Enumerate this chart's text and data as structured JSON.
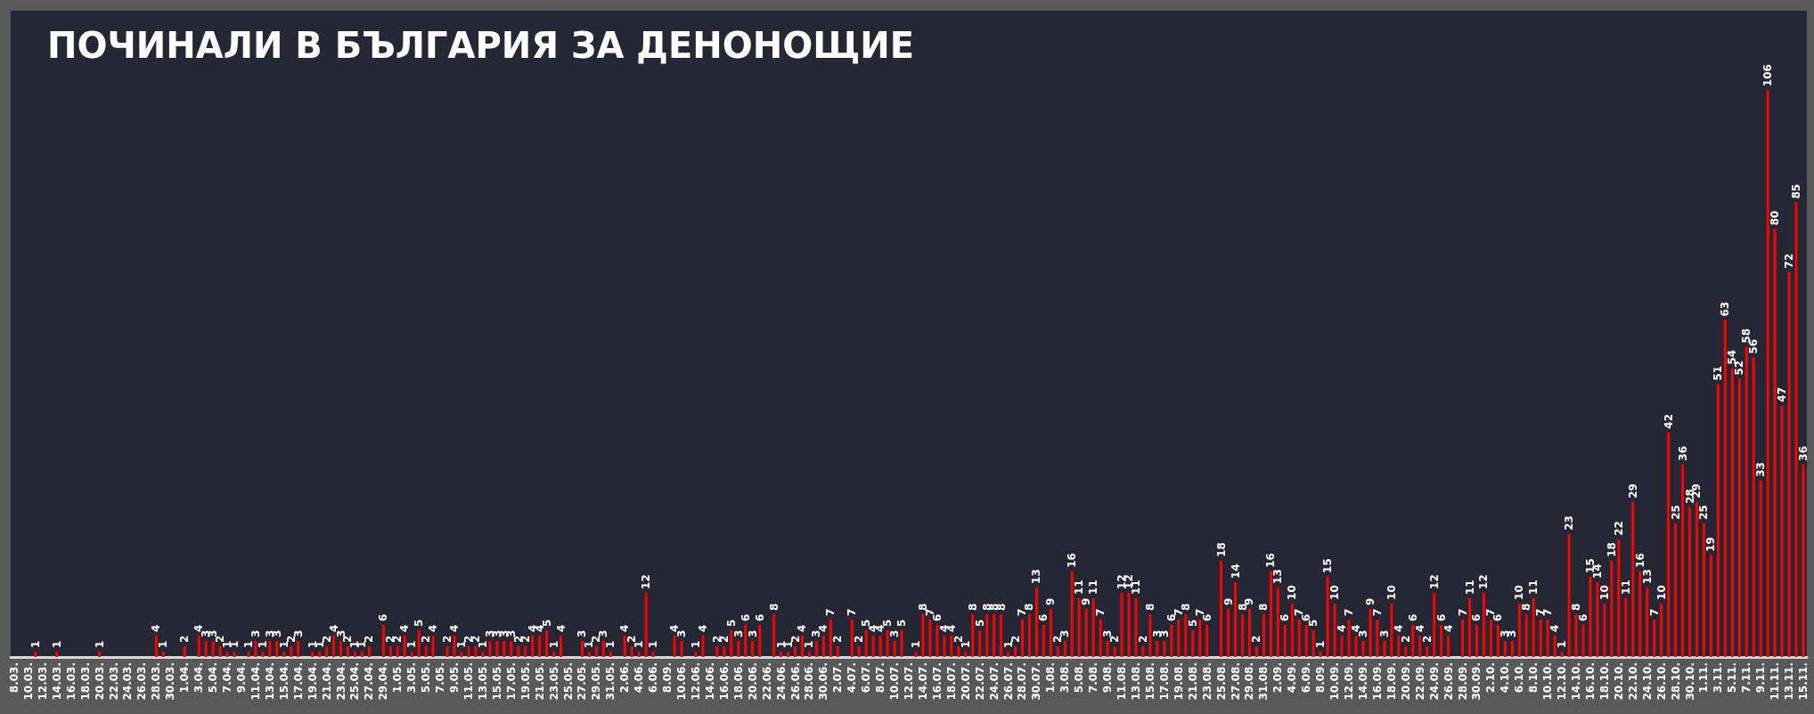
{
  "chart_data": {
    "type": "bar",
    "title": "ПОЧИНАЛИ В БЪЛГАРИЯ ЗА ДЕНОНОЩИЕ",
    "color": "#ff0000",
    "data_labels": true,
    "categories": [
      "8.03.",
      null,
      "10.03.",
      null,
      "12.03.",
      null,
      "14.03.",
      null,
      "16.03.",
      null,
      "18.03.",
      null,
      "20.03.",
      null,
      "22.03.",
      null,
      "24.03.",
      null,
      "26.03.",
      null,
      "28.03.",
      null,
      "30.03.",
      null,
      "1.04.",
      null,
      "3.04.",
      null,
      "5.04.",
      null,
      "7.04.",
      null,
      "9.04.",
      null,
      "11.04.",
      null,
      "13.04.",
      null,
      "15.04.",
      null,
      "17.04.",
      null,
      "19.04.",
      null,
      "21.04.",
      null,
      "23.04.",
      null,
      "25.04.",
      null,
      "27.04.",
      null,
      "29.04.",
      null,
      "1.05.",
      null,
      "3.05.",
      null,
      "5.05.",
      null,
      "7.05.",
      null,
      "9.05.",
      null,
      "11.05.",
      null,
      "13.05.",
      null,
      "15.05.",
      null,
      "17.05.",
      null,
      "19.05.",
      null,
      "21.05.",
      null,
      "23.05.",
      null,
      "25.05.",
      null,
      "27.05.",
      null,
      "29.05.",
      null,
      "31.05.",
      null,
      "2.06.",
      null,
      "4.06.",
      null,
      "6.06.",
      null,
      "8.09.",
      null,
      "10.06.",
      null,
      "12.06.",
      null,
      "14.06.",
      null,
      "16.06.",
      null,
      "18.06.",
      null,
      "20.06.",
      null,
      "22.06.",
      null,
      "24.06.",
      null,
      "26.06.",
      null,
      "28.06.",
      null,
      "30.06.",
      null,
      "2.07.",
      null,
      "4.07.",
      null,
      "6.07.",
      null,
      "8.07.",
      null,
      "10.07.",
      null,
      "12.07.",
      null,
      "14.07.",
      null,
      "16.07.",
      null,
      "18.07.",
      null,
      "20.07.",
      null,
      "22.07.",
      null,
      "24.07.",
      null,
      "26.07.",
      null,
      "28.07.",
      null,
      "30.07.",
      null,
      "1.08.",
      null,
      "3.08.",
      null,
      "5.08.",
      null,
      "7.08.",
      null,
      "9.08.",
      null,
      "11.08.",
      null,
      "13.08.",
      null,
      "15.08.",
      null,
      "17.08.",
      null,
      "19.08.",
      null,
      "21.08.",
      null,
      "23.08.",
      null,
      "25.08.",
      null,
      "27.08.",
      null,
      "29.08.",
      null,
      "31.08.",
      null,
      "2.09.",
      null,
      "4.09.",
      null,
      "6.09.",
      null,
      "8.09.",
      null,
      "10.09.",
      null,
      "12.09.",
      null,
      "14.09.",
      null,
      "16.09.",
      null,
      "18.09.",
      null,
      "20.09.",
      null,
      "22.09.",
      null,
      "24.09.",
      null,
      "26.09.",
      null,
      "28.09.",
      null,
      "30.09.",
      null,
      "2.10.",
      null,
      "4.10.",
      null,
      "6.10.",
      null,
      "8.10.",
      null,
      "10.10.",
      null,
      "12.10.",
      null,
      "14.10.",
      null,
      "16.10.",
      null,
      "18.10.",
      null,
      "20.10.",
      null,
      "22.10.",
      null,
      "24.10.",
      null,
      "26.10.",
      null,
      "28.10.",
      null,
      "30.10.",
      null,
      "1.11.",
      null,
      "3.11.",
      null,
      "5.11.",
      null,
      "7.11.",
      null,
      "9.11.",
      null,
      "11.11.",
      null,
      "13.11.",
      null,
      "15.11."
    ],
    "values": [
      null,
      null,
      null,
      1,
      null,
      null,
      1,
      null,
      null,
      null,
      null,
      null,
      1,
      null,
      null,
      null,
      null,
      null,
      null,
      null,
      4,
      1,
      null,
      null,
      2,
      null,
      4,
      3,
      3,
      2,
      1,
      1,
      null,
      1,
      3,
      1,
      3,
      3,
      1,
      2,
      3,
      null,
      1,
      1,
      2,
      4,
      3,
      2,
      1,
      1,
      2,
      null,
      6,
      2,
      2,
      4,
      1,
      5,
      2,
      4,
      null,
      2,
      4,
      1,
      2,
      2,
      1,
      3,
      3,
      3,
      3,
      2,
      2,
      4,
      4,
      5,
      1,
      4,
      null,
      null,
      3,
      1,
      2,
      3,
      1,
      null,
      4,
      2,
      1,
      12,
      1,
      null,
      null,
      4,
      3,
      null,
      1,
      4,
      null,
      2,
      2,
      5,
      3,
      6,
      3,
      6,
      null,
      8,
      1,
      1,
      2,
      4,
      1,
      3,
      4,
      7,
      2,
      null,
      7,
      2,
      5,
      4,
      4,
      5,
      3,
      5,
      null,
      1,
      8,
      7,
      6,
      4,
      4,
      2,
      1,
      8,
      5,
      8,
      8,
      8,
      1,
      2,
      7,
      8,
      13,
      6,
      9,
      2,
      3,
      16,
      11,
      9,
      11,
      7,
      3,
      2,
      12,
      12,
      11,
      2,
      8,
      3,
      3,
      6,
      7,
      8,
      5,
      7,
      6,
      null,
      18,
      9,
      14,
      8,
      9,
      2,
      8,
      16,
      13,
      6,
      10,
      7,
      6,
      5,
      1,
      15,
      10,
      4,
      7,
      4,
      3,
      9,
      7,
      3,
      10,
      4,
      2,
      6,
      4,
      2,
      12,
      6,
      4,
      null,
      7,
      11,
      6,
      12,
      7,
      6,
      3,
      3,
      10,
      8,
      11,
      7,
      7,
      4,
      1,
      23,
      8,
      6,
      15,
      14,
      10,
      18,
      22,
      11,
      29,
      16,
      13,
      7,
      10,
      42,
      25,
      36,
      28,
      29,
      25,
      19,
      51,
      63,
      54,
      52,
      58,
      56,
      33,
      106,
      80,
      47,
      72,
      85,
      36
    ]
  }
}
